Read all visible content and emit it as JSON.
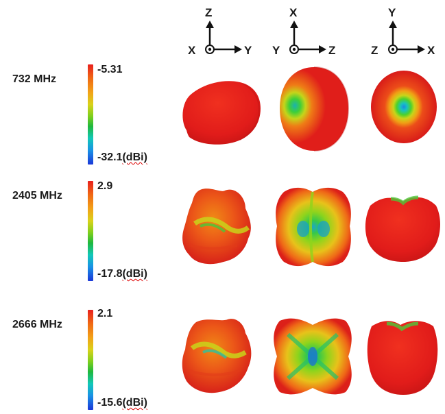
{
  "views": [
    {
      "up": "Z",
      "out": "X",
      "right": "Y"
    },
    {
      "up": "X",
      "out": "Y",
      "right": "Z"
    },
    {
      "up": "Y",
      "out": "Z",
      "right": "X"
    }
  ],
  "rows": [
    {
      "frequency": "732 MHz",
      "max": "-5.31",
      "min": "-32.1",
      "unit": "(dBi)"
    },
    {
      "frequency": "2405 MHz",
      "max": "2.9",
      "min": "-17.8",
      "unit": "(dBi)"
    },
    {
      "frequency": "2666 MHz",
      "max": "2.1",
      "min": "-15.6",
      "unit": "(dBi)"
    }
  ],
  "colors": {
    "high": "#e8201e",
    "mid": "#7ccf1d",
    "low": "#1a37d8"
  }
}
